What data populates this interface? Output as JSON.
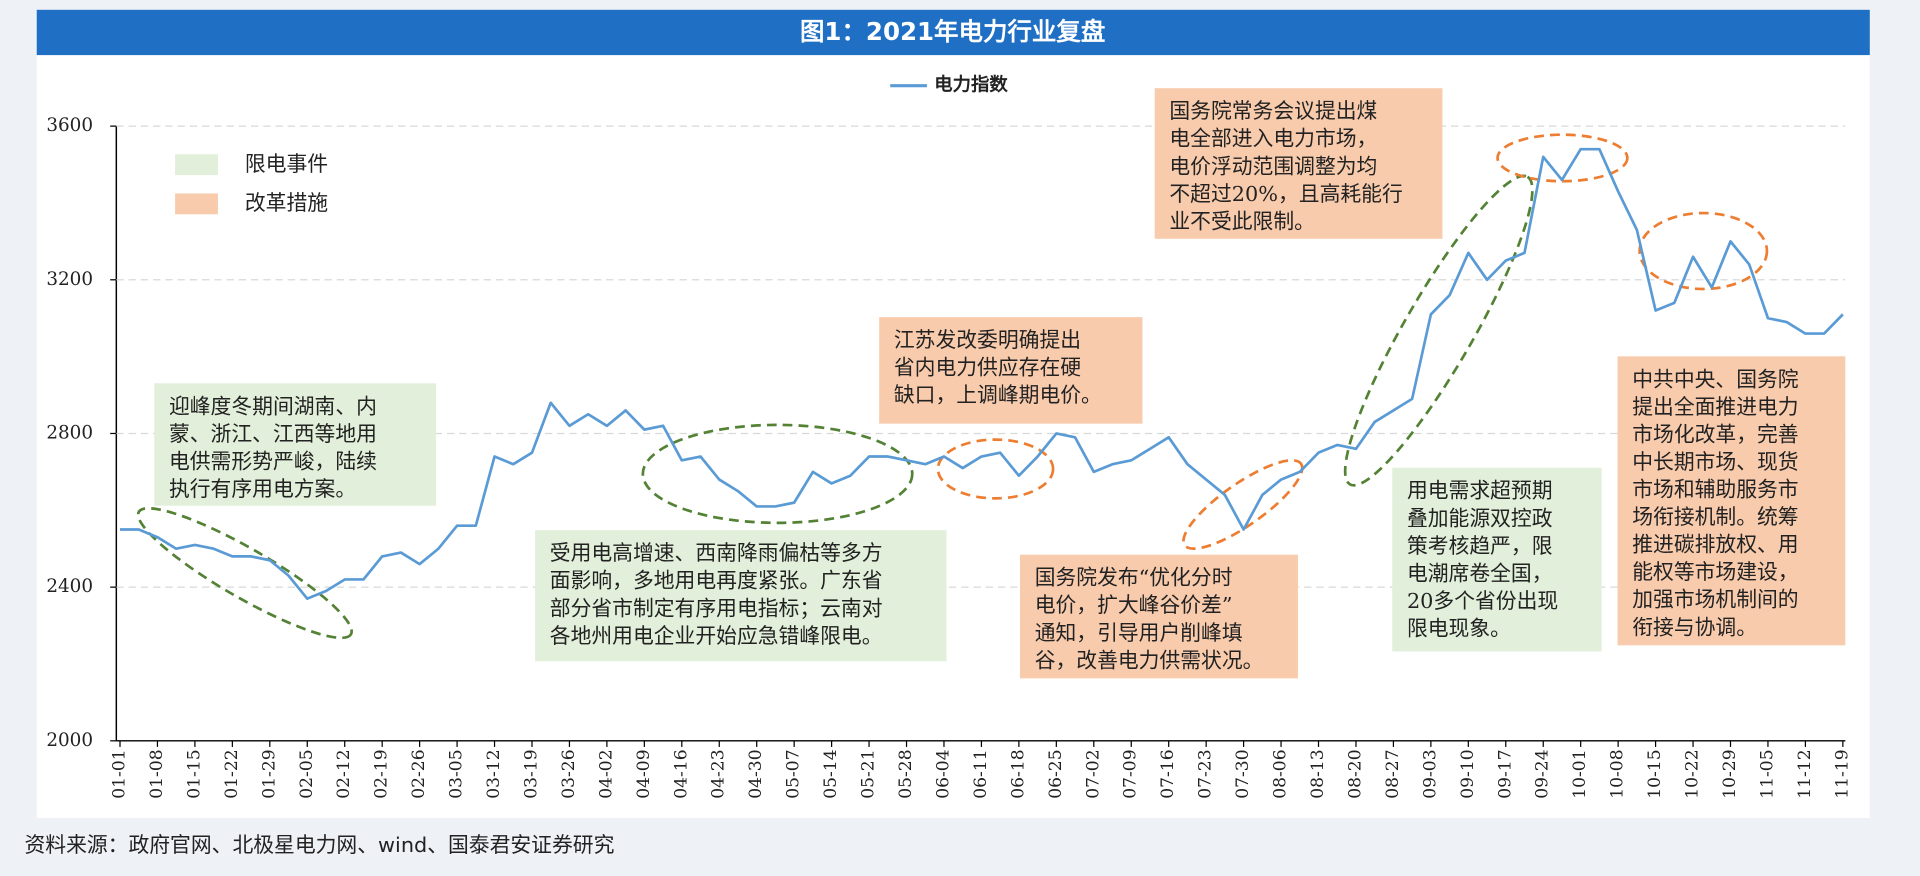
{
  "chart_data": {
    "type": "line",
    "title": "图1：2021年电力行业复盘",
    "source": "资料来源：政府官网、北极星电力网、wind、国泰君安证券研究",
    "categories": [
      "01-01",
      null,
      "01-08",
      null,
      "01-15",
      null,
      "01-22",
      null,
      "01-29",
      null,
      "02-05",
      null,
      "02-12",
      null,
      "02-19",
      null,
      "02-26",
      null,
      "03-05",
      null,
      "03-12",
      null,
      "03-19",
      null,
      "03-26",
      null,
      "04-02",
      null,
      "04-09",
      null,
      "04-16",
      null,
      "04-23",
      null,
      "04-30",
      null,
      "05-07",
      null,
      "05-14",
      null,
      "05-21",
      null,
      "05-28",
      null,
      "06-04",
      null,
      "06-11",
      null,
      "06-18",
      null,
      "06-25",
      null,
      "07-02",
      null,
      "07-09",
      null,
      "07-16",
      null,
      "07-23",
      null,
      "07-30",
      null,
      "08-06",
      null,
      "08-13",
      null,
      "08-20",
      null,
      "08-27",
      null,
      "09-03",
      null,
      "09-10",
      null,
      "09-17",
      null,
      "09-24",
      null,
      "10-01",
      null,
      "10-08",
      null,
      "10-15",
      null,
      "10-22",
      null,
      "10-29",
      null,
      "11-05",
      null,
      "11-12",
      null,
      "11-19"
    ],
    "series": [
      {
        "name": "电力指数",
        "color": "#5b9bd5",
        "values": [
          2550,
          2550,
          2530,
          2500,
          2510,
          2500,
          2480,
          2480,
          2470,
          2430,
          2370,
          2390,
          2420,
          2420,
          2480,
          2490,
          2460,
          2500,
          2560,
          2560,
          2740,
          2720,
          2750,
          2880,
          2820,
          2850,
          2820,
          2860,
          2810,
          2820,
          2730,
          2740,
          2680,
          2650,
          2610,
          2610,
          2620,
          2700,
          2670,
          2690,
          2740,
          2740,
          2730,
          2720,
          2740,
          2710,
          2740,
          2750,
          2690,
          2740,
          2800,
          2790,
          2700,
          2720,
          2730,
          2760,
          2790,
          2720,
          2680,
          2640,
          2550,
          2640,
          2680,
          2700,
          2750,
          2770,
          2760,
          2830,
          2860,
          2890,
          3110,
          3160,
          3270,
          3200,
          3250,
          3270,
          3520,
          3460,
          3540,
          3540,
          3430,
          3330,
          3120,
          3140,
          3260,
          3180,
          3300,
          3240,
          3100,
          3090,
          3060,
          3060,
          3110
        ]
      }
    ],
    "ylim": [
      2000,
      3600
    ],
    "yticks": [
      2000,
      2400,
      2800,
      3200,
      3600
    ],
    "grid": true,
    "annotation_legend": [
      {
        "label": "限电事件",
        "color": "#e2efda"
      },
      {
        "label": "改革措施",
        "color": "#f8cbad"
      }
    ],
    "annotations": [
      {
        "color": "#e2efda",
        "lines": [
          "迎峰度冬期间湖南、内",
          "蒙、浙江、江西等地用",
          "电供需形势严峻，陆续",
          "执行有序用电方案。"
        ]
      },
      {
        "color": "#e2efda",
        "lines": [
          "受用电高增速、西南降雨偏枯等多方",
          "面影响，多地用电再度紧张。广东省",
          "部分省市制定有序用电指标；云南对",
          "各地州用电企业开始应急错峰限电。"
        ]
      },
      {
        "color": "#f8cbad",
        "lines": [
          "江苏发改委明确提出",
          "省内电力供应存在硬",
          "缺口，上调峰期电价。"
        ]
      },
      {
        "color": "#f8cbad",
        "lines": [
          "国务院发布“优化分时",
          "电价，扩大峰谷价差”",
          "通知，引导用户削峰填",
          "谷，改善电力供需状况。"
        ]
      },
      {
        "color": "#f8cbad",
        "lines": [
          "国务院常务会议提出煤",
          "电全部进入电力市场，",
          "电价浮动范围调整为均",
          "不超过20%，且高耗能行",
          "业不受此限制。"
        ]
      },
      {
        "color": "#e2efda",
        "lines": [
          "用电需求超预期",
          "叠加能源双控政",
          "策考核趋严，限",
          "电潮席卷全国，",
          "20多个省份出现",
          "限电现象。"
        ]
      },
      {
        "color": "#f8cbad",
        "lines": [
          "中共中央、国务院",
          "提出全面推进电力",
          "市场化改革，完善",
          "中长期市场、现货",
          "市场和辅助服务市",
          "场衔接机制。统筹",
          "推进碳排放权、用",
          "能权等市场建设，",
          "加强市场机制间的",
          "衔接与协调。"
        ]
      }
    ]
  }
}
